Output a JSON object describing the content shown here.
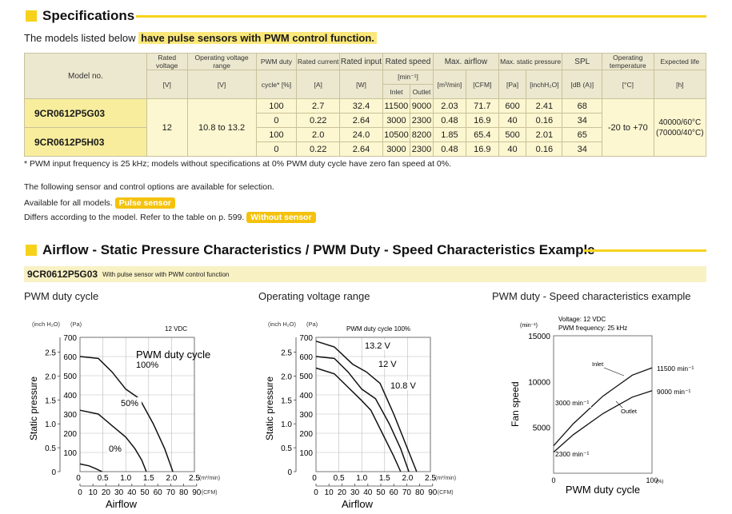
{
  "spec": {
    "heading": "Specifications",
    "intro_prefix": "The models listed below",
    "intro_highlight": "have pulse sensors with PWM control function.",
    "table": {
      "h_model": "Model no.",
      "h_rated_voltage": "Rated voltage",
      "h_rated_voltage_unit": "[V]",
      "h_op_voltage": "Operating voltage range",
      "h_op_voltage_unit": "[V]",
      "h_pwm": "PWM duty",
      "h_pwm_unit": "cycle* [%]",
      "h_current": "Rated current",
      "h_current_unit": "[A]",
      "h_input": "Rated input",
      "h_input_unit": "[W]",
      "h_speed": "Rated speed",
      "h_speed_unit": "[min⁻¹]",
      "h_inlet": "Inlet",
      "h_outlet": "Outlet",
      "h_airflow": "Max. airflow",
      "h_airflow_u1": "[m³/min]",
      "h_airflow_u2": "[CFM]",
      "h_pressure": "Max. static pressure",
      "h_pressure_u1": "[Pa]",
      "h_pressure_u2": "[inchH₂O]",
      "h_spl": "SPL",
      "h_spl_unit": "[dB (A)]",
      "h_temp": "Operating temperature",
      "h_temp_unit": "[°C]",
      "h_life": "Expected life",
      "h_life_unit": "[h]",
      "rated_voltage": "12",
      "op_voltage": "10.8 to 13.2",
      "temp": "-20 to +70",
      "life_1": "40000/60°C",
      "life_2": "(70000/40°C)",
      "models": [
        {
          "name": "9CR0612P5G03",
          "rows": [
            {
              "pwm": "100",
              "current": "2.7",
              "input": "32.4",
              "inlet": "11500",
              "outlet": "9000",
              "m3": "2.03",
              "cfm": "71.7",
              "pa": "600",
              "inch": "2.41",
              "spl": "68"
            },
            {
              "pwm": "0",
              "current": "0.22",
              "input": "2.64",
              "inlet": "3000",
              "outlet": "2300",
              "m3": "0.48",
              "cfm": "16.9",
              "pa": "40",
              "inch": "0.16",
              "spl": "34"
            }
          ]
        },
        {
          "name": "9CR0612P5H03",
          "rows": [
            {
              "pwm": "100",
              "current": "2.0",
              "input": "24.0",
              "inlet": "10500",
              "outlet": "8200",
              "m3": "1.85",
              "cfm": "65.4",
              "pa": "500",
              "inch": "2.01",
              "spl": "65"
            },
            {
              "pwm": "0",
              "current": "0.22",
              "input": "2.64",
              "inlet": "3000",
              "outlet": "2300",
              "m3": "0.48",
              "cfm": "16.9",
              "pa": "40",
              "inch": "0.16",
              "spl": "34"
            }
          ]
        }
      ]
    },
    "footnote": "* PWM input frequency is 25 kHz; models without specifications at 0% PWM duty cycle have zero fan speed at 0%.",
    "options_line": "The following sensor and control options are available for selection.",
    "avail_label": "Available for all models.",
    "pulse_pill": "Pulse sensor",
    "differs_label": "Differs according to the model. Refer to the table on p. 599.",
    "without_pill": "Without sensor"
  },
  "charts_section": {
    "heading": "Airflow - Static Pressure Characteristics / PWM Duty - Speed Characteristics Example",
    "model": "9CR0612P5G03",
    "model_sub": "With pulse sensor with PWM control function",
    "chart1_title": "PWM duty cycle",
    "chart2_title": "Operating voltage range",
    "chart3_title": "PWM duty - Speed characteristics example"
  },
  "chart_data": [
    {
      "type": "line",
      "title": "PWM duty cycle",
      "note": "12 VDC",
      "xlabel": "Airflow",
      "ylabel": "Static pressure",
      "x_unit_m3": "(m³/min)",
      "x_unit_cfm": "(CFM)",
      "y_unit_inch": "(inch H₂O)",
      "y_unit_pa": "(Pa)",
      "xlim": [
        0,
        2.5
      ],
      "ylim": [
        0,
        700
      ],
      "x_ticks_m3": [
        "0",
        "0.5",
        "1.0",
        "1.5",
        "2.0",
        "2.5"
      ],
      "x_ticks_cfm": [
        "0",
        "10",
        "20",
        "30",
        "40",
        "50",
        "60",
        "70",
        "80",
        "90"
      ],
      "y_ticks_pa": [
        "100",
        "200",
        "300",
        "400",
        "500",
        "600",
        "700"
      ],
      "y_ticks_inch": [
        "0",
        "0.5",
        "1.0",
        "1.5",
        "2.0",
        "2.5"
      ],
      "legend_label": "PWM duty cycle",
      "series": [
        {
          "name": "100%",
          "points": [
            [
              0,
              600
            ],
            [
              0.4,
              590
            ],
            [
              0.7,
              520
            ],
            [
              1.0,
              430
            ],
            [
              1.3,
              380
            ],
            [
              1.6,
              250
            ],
            [
              1.85,
              120
            ],
            [
              2.03,
              0
            ]
          ]
        },
        {
          "name": "50%",
          "points": [
            [
              0,
              320
            ],
            [
              0.4,
              300
            ],
            [
              0.7,
              240
            ],
            [
              1.0,
              180
            ],
            [
              1.2,
              120
            ],
            [
              1.35,
              60
            ],
            [
              1.45,
              0
            ]
          ]
        },
        {
          "name": "0%",
          "points": [
            [
              0,
              40
            ],
            [
              0.2,
              30
            ],
            [
              0.35,
              15
            ],
            [
              0.48,
              0
            ]
          ]
        }
      ]
    },
    {
      "type": "line",
      "title": "Operating voltage range",
      "note": "PWM duty cycle 100%",
      "xlabel": "Airflow",
      "ylabel": "Static pressure",
      "x_unit_m3": "(m³/min)",
      "x_unit_cfm": "(CFM)",
      "y_unit_inch": "(inch H₂O)",
      "y_unit_pa": "(Pa)",
      "xlim": [
        0,
        2.5
      ],
      "ylim": [
        0,
        700
      ],
      "x_ticks_m3": [
        "0",
        "0.5",
        "1.0",
        "1.5",
        "2.0",
        "2.5"
      ],
      "x_ticks_cfm": [
        "0",
        "10",
        "20",
        "30",
        "40",
        "50",
        "60",
        "70",
        "80",
        "90"
      ],
      "y_ticks_pa": [
        "100",
        "200",
        "300",
        "400",
        "500",
        "600",
        "700"
      ],
      "y_ticks_inch": [
        "0",
        "0.5",
        "1.0",
        "1.5",
        "2.0",
        "2.5"
      ],
      "series": [
        {
          "name": "13.2 V",
          "points": [
            [
              0,
              680
            ],
            [
              0.4,
              650
            ],
            [
              0.8,
              560
            ],
            [
              1.1,
              520
            ],
            [
              1.4,
              460
            ],
            [
              1.7,
              300
            ],
            [
              1.95,
              150
            ],
            [
              2.2,
              0
            ]
          ]
        },
        {
          "name": "12 V",
          "points": [
            [
              0,
              600
            ],
            [
              0.4,
              590
            ],
            [
              0.7,
              520
            ],
            [
              1.0,
              430
            ],
            [
              1.3,
              380
            ],
            [
              1.6,
              250
            ],
            [
              1.85,
              120
            ],
            [
              2.03,
              0
            ]
          ]
        },
        {
          "name": "10.8 V",
          "points": [
            [
              0,
              540
            ],
            [
              0.4,
              510
            ],
            [
              0.7,
              440
            ],
            [
              1.0,
              370
            ],
            [
              1.2,
              320
            ],
            [
              1.45,
              200
            ],
            [
              1.7,
              80
            ],
            [
              1.85,
              0
            ]
          ]
        }
      ]
    },
    {
      "type": "line",
      "title": "PWM duty - Speed characteristics example",
      "note_voltage": "Voltage: 12 VDC",
      "note_freq": "PWM frequency: 25 kHz",
      "xlabel": "PWM duty cycle",
      "ylabel": "Fan speed",
      "x_unit": "(%)",
      "y_unit": "(min⁻¹)",
      "xlim": [
        0,
        100
      ],
      "ylim": [
        0,
        15000
      ],
      "x_ticks": [
        "0",
        "100"
      ],
      "y_ticks": [
        "5000",
        "10000",
        "15000"
      ],
      "series": [
        {
          "name": "Inlet",
          "points": [
            [
              0,
              3000
            ],
            [
              20,
              5400
            ],
            [
              50,
              8400
            ],
            [
              80,
              10700
            ],
            [
              100,
              11500
            ]
          ],
          "start_label": "3000 min⁻¹",
          "end_label": "11500 min⁻¹"
        },
        {
          "name": "Outlet",
          "points": [
            [
              0,
              2300
            ],
            [
              20,
              4200
            ],
            [
              50,
              6500
            ],
            [
              80,
              8300
            ],
            [
              100,
              9000
            ]
          ],
          "start_label": "2300 min⁻¹",
          "end_label": "9000 min⁻¹"
        }
      ]
    }
  ]
}
